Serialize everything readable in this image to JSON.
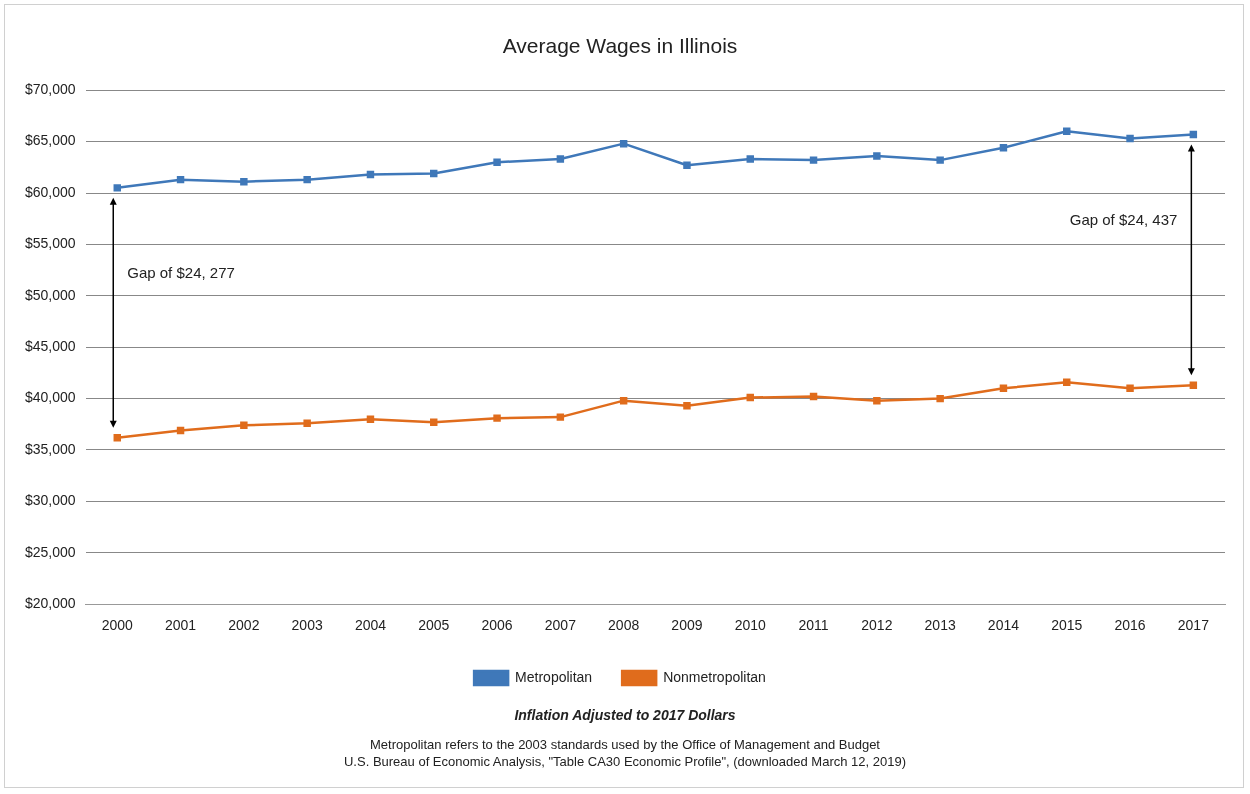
{
  "chart_data": {
    "type": "line",
    "title": "Average Wages in Illinois",
    "categories": [
      "2000",
      "2001",
      "2002",
      "2003",
      "2004",
      "2005",
      "2006",
      "2007",
      "2008",
      "2009",
      "2010",
      "2011",
      "2012",
      "2013",
      "2014",
      "2015",
      "2016",
      "2017"
    ],
    "series": [
      {
        "name": "Metropolitan",
        "color": "#3f78b9",
        "values": [
          60500,
          61300,
          61100,
          61300,
          61800,
          61900,
          63000,
          63300,
          64800,
          62700,
          63300,
          63200,
          63600,
          63200,
          64400,
          66000,
          65300,
          65700
        ]
      },
      {
        "name": "Nonmetropolitan",
        "color": "#e06c1c",
        "values": [
          36200,
          36900,
          37400,
          37600,
          38000,
          37700,
          38100,
          38200,
          39800,
          39300,
          40100,
          40200,
          39800,
          40000,
          41000,
          41600,
          41000,
          41300
        ]
      }
    ],
    "ylim": [
      20000,
      70000
    ],
    "yticks": [
      {
        "value": 20000,
        "label": "$20,000"
      },
      {
        "value": 25000,
        "label": "$25,000"
      },
      {
        "value": 30000,
        "label": "$30,000"
      },
      {
        "value": 35000,
        "label": "$35,000"
      },
      {
        "value": 40000,
        "label": "$40,000"
      },
      {
        "value": 45000,
        "label": "$45,000"
      },
      {
        "value": 50000,
        "label": "$50,000"
      },
      {
        "value": 55000,
        "label": "$55,000"
      },
      {
        "value": 60000,
        "label": "$60,000"
      },
      {
        "value": 65000,
        "label": "$65,000"
      },
      {
        "value": 70000,
        "label": "$70,000"
      }
    ],
    "grid": "y",
    "legend": "bottom",
    "marker": "square",
    "line_style": "solid",
    "annotations": [
      "Gap of $24, 277",
      "Gap of $24, 437",
      "Inflation Adjusted to 2017 Dollars",
      "Metropolitan refers to the 2003 standards used by the Office of Management and Budget",
      "U.S. Bureau of Economic Analysis, \"Table CA30 Economic Profile\", (downloaded March 12, 2019)"
    ]
  }
}
